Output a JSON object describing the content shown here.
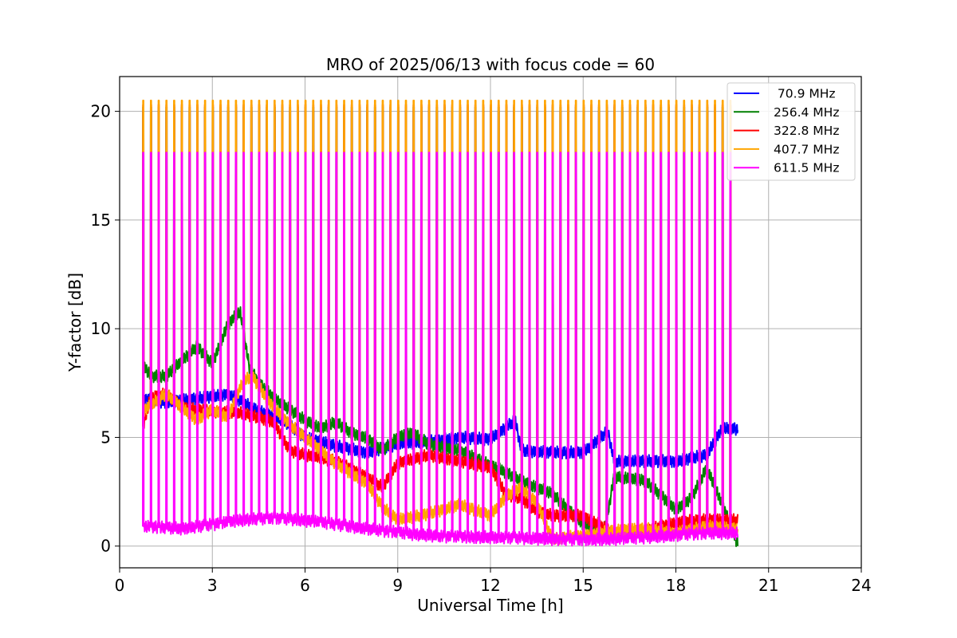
{
  "chart_data": {
    "type": "line",
    "title": "MRO of 2025/06/13 with focus code = 60",
    "xlabel": "Universal Time [h]",
    "ylabel": "Y-factor [dB]",
    "xlim": [
      0,
      24
    ],
    "ylim": [
      -1,
      21.6
    ],
    "xticks": [
      0,
      3,
      6,
      9,
      12,
      15,
      18,
      21,
      24
    ],
    "yticks": [
      0,
      5,
      10,
      15,
      20
    ],
    "grid": true,
    "legend_position": "top-right",
    "pulses": {
      "start": 0.75,
      "end": 19.75,
      "interval": 0.25
    },
    "series": [
      {
        "name": " 70.9 MHz",
        "color": "#0000ff",
        "peak": 20.0,
        "x": [
          0.75,
          1.5,
          2.5,
          3.5,
          4.5,
          5.3,
          6.0,
          7.0,
          8.0,
          9.0,
          10.0,
          11.0,
          12.0,
          12.8,
          13.0,
          14.0,
          15.0,
          15.8,
          16.0,
          17.0,
          18.0,
          19.0,
          19.5,
          20.0
        ],
        "y": [
          6.8,
          6.6,
          6.8,
          7.0,
          6.2,
          5.8,
          5.0,
          4.6,
          4.3,
          4.7,
          4.8,
          5.0,
          4.9,
          5.8,
          4.4,
          4.3,
          4.3,
          5.3,
          3.9,
          3.9,
          3.9,
          4.2,
          5.4,
          5.4
        ]
      },
      {
        "name": "256.4 MHz",
        "color": "#008000",
        "peak": 20.2,
        "x": [
          0.75,
          1.0,
          1.5,
          2.0,
          2.5,
          3.0,
          3.5,
          3.9,
          4.2,
          4.5,
          5.0,
          5.5,
          6.0,
          6.5,
          7.0,
          7.5,
          8.0,
          8.5,
          9.0,
          9.5,
          10.0,
          11.0,
          12.0,
          12.5,
          13.0,
          14.0,
          15.0,
          15.7,
          16.0,
          17.0,
          18.0,
          18.5,
          19.0,
          19.7,
          20.0
        ],
        "y": [
          8.4,
          7.8,
          7.8,
          8.5,
          9.2,
          8.4,
          10.2,
          10.8,
          8.2,
          7.5,
          6.8,
          6.3,
          5.8,
          5.4,
          5.7,
          5.2,
          5.0,
          4.4,
          5.0,
          5.2,
          4.7,
          4.4,
          3.7,
          3.4,
          3.0,
          2.4,
          1.0,
          0.7,
          3.2,
          3.0,
          1.7,
          2.2,
          3.6,
          1.2,
          0.1
        ]
      },
      {
        "name": "322.8 MHz",
        "color": "#ff0000",
        "peak": 20.3,
        "x": [
          0.75,
          1.0,
          1.5,
          2.0,
          3.0,
          4.0,
          5.0,
          5.5,
          6.0,
          7.0,
          8.0,
          8.5,
          9.0,
          10.0,
          11.0,
          12.0,
          12.5,
          13.0,
          13.5,
          14.0,
          15.0,
          16.0,
          17.0,
          18.0,
          19.0,
          20.0
        ],
        "y": [
          5.5,
          6.8,
          7.0,
          6.4,
          6.2,
          6.1,
          5.7,
          4.4,
          4.2,
          3.9,
          3.2,
          2.7,
          3.8,
          4.2,
          3.9,
          3.6,
          2.4,
          2.2,
          1.6,
          1.4,
          1.4,
          0.6,
          0.7,
          1.1,
          1.2,
          1.2
        ]
      },
      {
        "name": "407.7 MHz",
        "color": "#ffa500",
        "peak": 20.5,
        "x": [
          0.75,
          1.5,
          2.5,
          3.0,
          3.5,
          4.0,
          4.3,
          4.8,
          5.5,
          6.0,
          7.0,
          8.0,
          8.5,
          9.0,
          10.0,
          11.0,
          12.0,
          12.5,
          13.0,
          13.5,
          14.0,
          15.0,
          16.0,
          17.0,
          18.0,
          19.0,
          20.0
        ],
        "y": [
          6.2,
          7.0,
          5.8,
          6.3,
          5.9,
          7.6,
          7.8,
          6.7,
          5.6,
          5.0,
          3.8,
          2.9,
          1.8,
          1.2,
          1.5,
          1.9,
          1.4,
          2.3,
          2.7,
          2.0,
          0.3,
          0.5,
          0.7,
          0.8,
          0.6,
          0.9,
          0.8
        ]
      },
      {
        "name": "611.5 MHz",
        "color": "#ff00ff",
        "peak": 18.1,
        "x": [
          0.75,
          2.0,
          3.0,
          4.0,
          5.0,
          5.8,
          6.5,
          7.5,
          8.5,
          9.5,
          10.5,
          11.5,
          12.5,
          13.5,
          14.5,
          15.5,
          16.5,
          17.5,
          18.5,
          19.5,
          20.0
        ],
        "y": [
          0.9,
          0.8,
          1.0,
          1.2,
          1.3,
          1.2,
          1.1,
          0.9,
          0.7,
          0.55,
          0.45,
          0.4,
          0.4,
          0.35,
          0.3,
          0.3,
          0.35,
          0.45,
          0.55,
          0.6,
          0.6
        ]
      }
    ]
  }
}
